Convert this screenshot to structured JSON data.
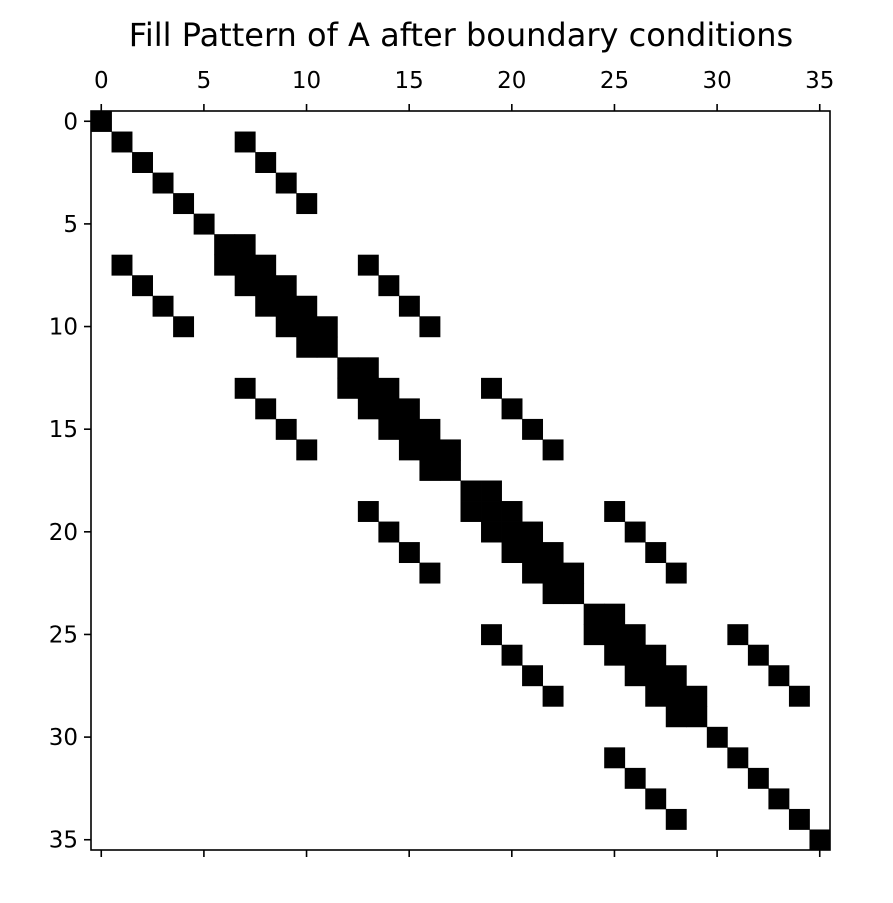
{
  "chart_data": {
    "type": "heatmap",
    "subtype": "sparsity-pattern",
    "title": "Fill Pattern of A after boundary conditions",
    "xlabel": "",
    "ylabel": "",
    "matrix_size": 36,
    "x_axis_position": "top",
    "y_axis_inverted": true,
    "xlim": [
      -0.5,
      35.5
    ],
    "ylim": [
      35.5,
      -0.5
    ],
    "x_ticks": [
      0,
      5,
      10,
      15,
      20,
      25,
      30,
      35
    ],
    "y_ticks": [
      0,
      5,
      10,
      15,
      20,
      25,
      30,
      35
    ],
    "x_tick_labels": [
      "0",
      "5",
      "10",
      "15",
      "20",
      "25",
      "30",
      "35"
    ],
    "y_tick_labels": [
      "0",
      "5",
      "10",
      "15",
      "20",
      "25",
      "30",
      "35"
    ],
    "grid": false,
    "legend": "none",
    "marker_color": "#000000",
    "background_color": "#ffffff",
    "nonzeros": [
      [
        0,
        0
      ],
      [
        1,
        1
      ],
      [
        1,
        7
      ],
      [
        2,
        2
      ],
      [
        2,
        8
      ],
      [
        3,
        3
      ],
      [
        3,
        9
      ],
      [
        4,
        4
      ],
      [
        4,
        10
      ],
      [
        5,
        5
      ],
      [
        6,
        6
      ],
      [
        6,
        7
      ],
      [
        7,
        1
      ],
      [
        7,
        6
      ],
      [
        7,
        7
      ],
      [
        7,
        8
      ],
      [
        7,
        13
      ],
      [
        8,
        2
      ],
      [
        8,
        7
      ],
      [
        8,
        8
      ],
      [
        8,
        9
      ],
      [
        8,
        14
      ],
      [
        9,
        3
      ],
      [
        9,
        8
      ],
      [
        9,
        9
      ],
      [
        9,
        10
      ],
      [
        9,
        15
      ],
      [
        10,
        4
      ],
      [
        10,
        9
      ],
      [
        10,
        10
      ],
      [
        10,
        11
      ],
      [
        10,
        16
      ],
      [
        11,
        10
      ],
      [
        11,
        11
      ],
      [
        12,
        12
      ],
      [
        12,
        13
      ],
      [
        13,
        7
      ],
      [
        13,
        12
      ],
      [
        13,
        13
      ],
      [
        13,
        14
      ],
      [
        13,
        19
      ],
      [
        14,
        8
      ],
      [
        14,
        13
      ],
      [
        14,
        14
      ],
      [
        14,
        15
      ],
      [
        14,
        20
      ],
      [
        15,
        9
      ],
      [
        15,
        14
      ],
      [
        15,
        15
      ],
      [
        15,
        16
      ],
      [
        15,
        21
      ],
      [
        16,
        10
      ],
      [
        16,
        15
      ],
      [
        16,
        16
      ],
      [
        16,
        17
      ],
      [
        16,
        22
      ],
      [
        17,
        16
      ],
      [
        17,
        17
      ],
      [
        18,
        18
      ],
      [
        18,
        19
      ],
      [
        19,
        13
      ],
      [
        19,
        18
      ],
      [
        19,
        19
      ],
      [
        19,
        20
      ],
      [
        19,
        25
      ],
      [
        20,
        14
      ],
      [
        20,
        19
      ],
      [
        20,
        20
      ],
      [
        20,
        21
      ],
      [
        20,
        26
      ],
      [
        21,
        15
      ],
      [
        21,
        20
      ],
      [
        21,
        21
      ],
      [
        21,
        22
      ],
      [
        21,
        27
      ],
      [
        22,
        16
      ],
      [
        22,
        21
      ],
      [
        22,
        22
      ],
      [
        22,
        23
      ],
      [
        22,
        28
      ],
      [
        23,
        22
      ],
      [
        23,
        23
      ],
      [
        24,
        24
      ],
      [
        24,
        25
      ],
      [
        25,
        19
      ],
      [
        25,
        24
      ],
      [
        25,
        25
      ],
      [
        25,
        26
      ],
      [
        25,
        31
      ],
      [
        26,
        20
      ],
      [
        26,
        25
      ],
      [
        26,
        26
      ],
      [
        26,
        27
      ],
      [
        26,
        32
      ],
      [
        27,
        21
      ],
      [
        27,
        26
      ],
      [
        27,
        27
      ],
      [
        27,
        28
      ],
      [
        27,
        33
      ],
      [
        28,
        22
      ],
      [
        28,
        27
      ],
      [
        28,
        28
      ],
      [
        28,
        29
      ],
      [
        28,
        34
      ],
      [
        29,
        28
      ],
      [
        29,
        29
      ],
      [
        30,
        30
      ],
      [
        31,
        25
      ],
      [
        31,
        31
      ],
      [
        32,
        26
      ],
      [
        32,
        32
      ],
      [
        33,
        27
      ],
      [
        33,
        33
      ],
      [
        34,
        28
      ],
      [
        34,
        34
      ],
      [
        35,
        35
      ]
    ]
  }
}
